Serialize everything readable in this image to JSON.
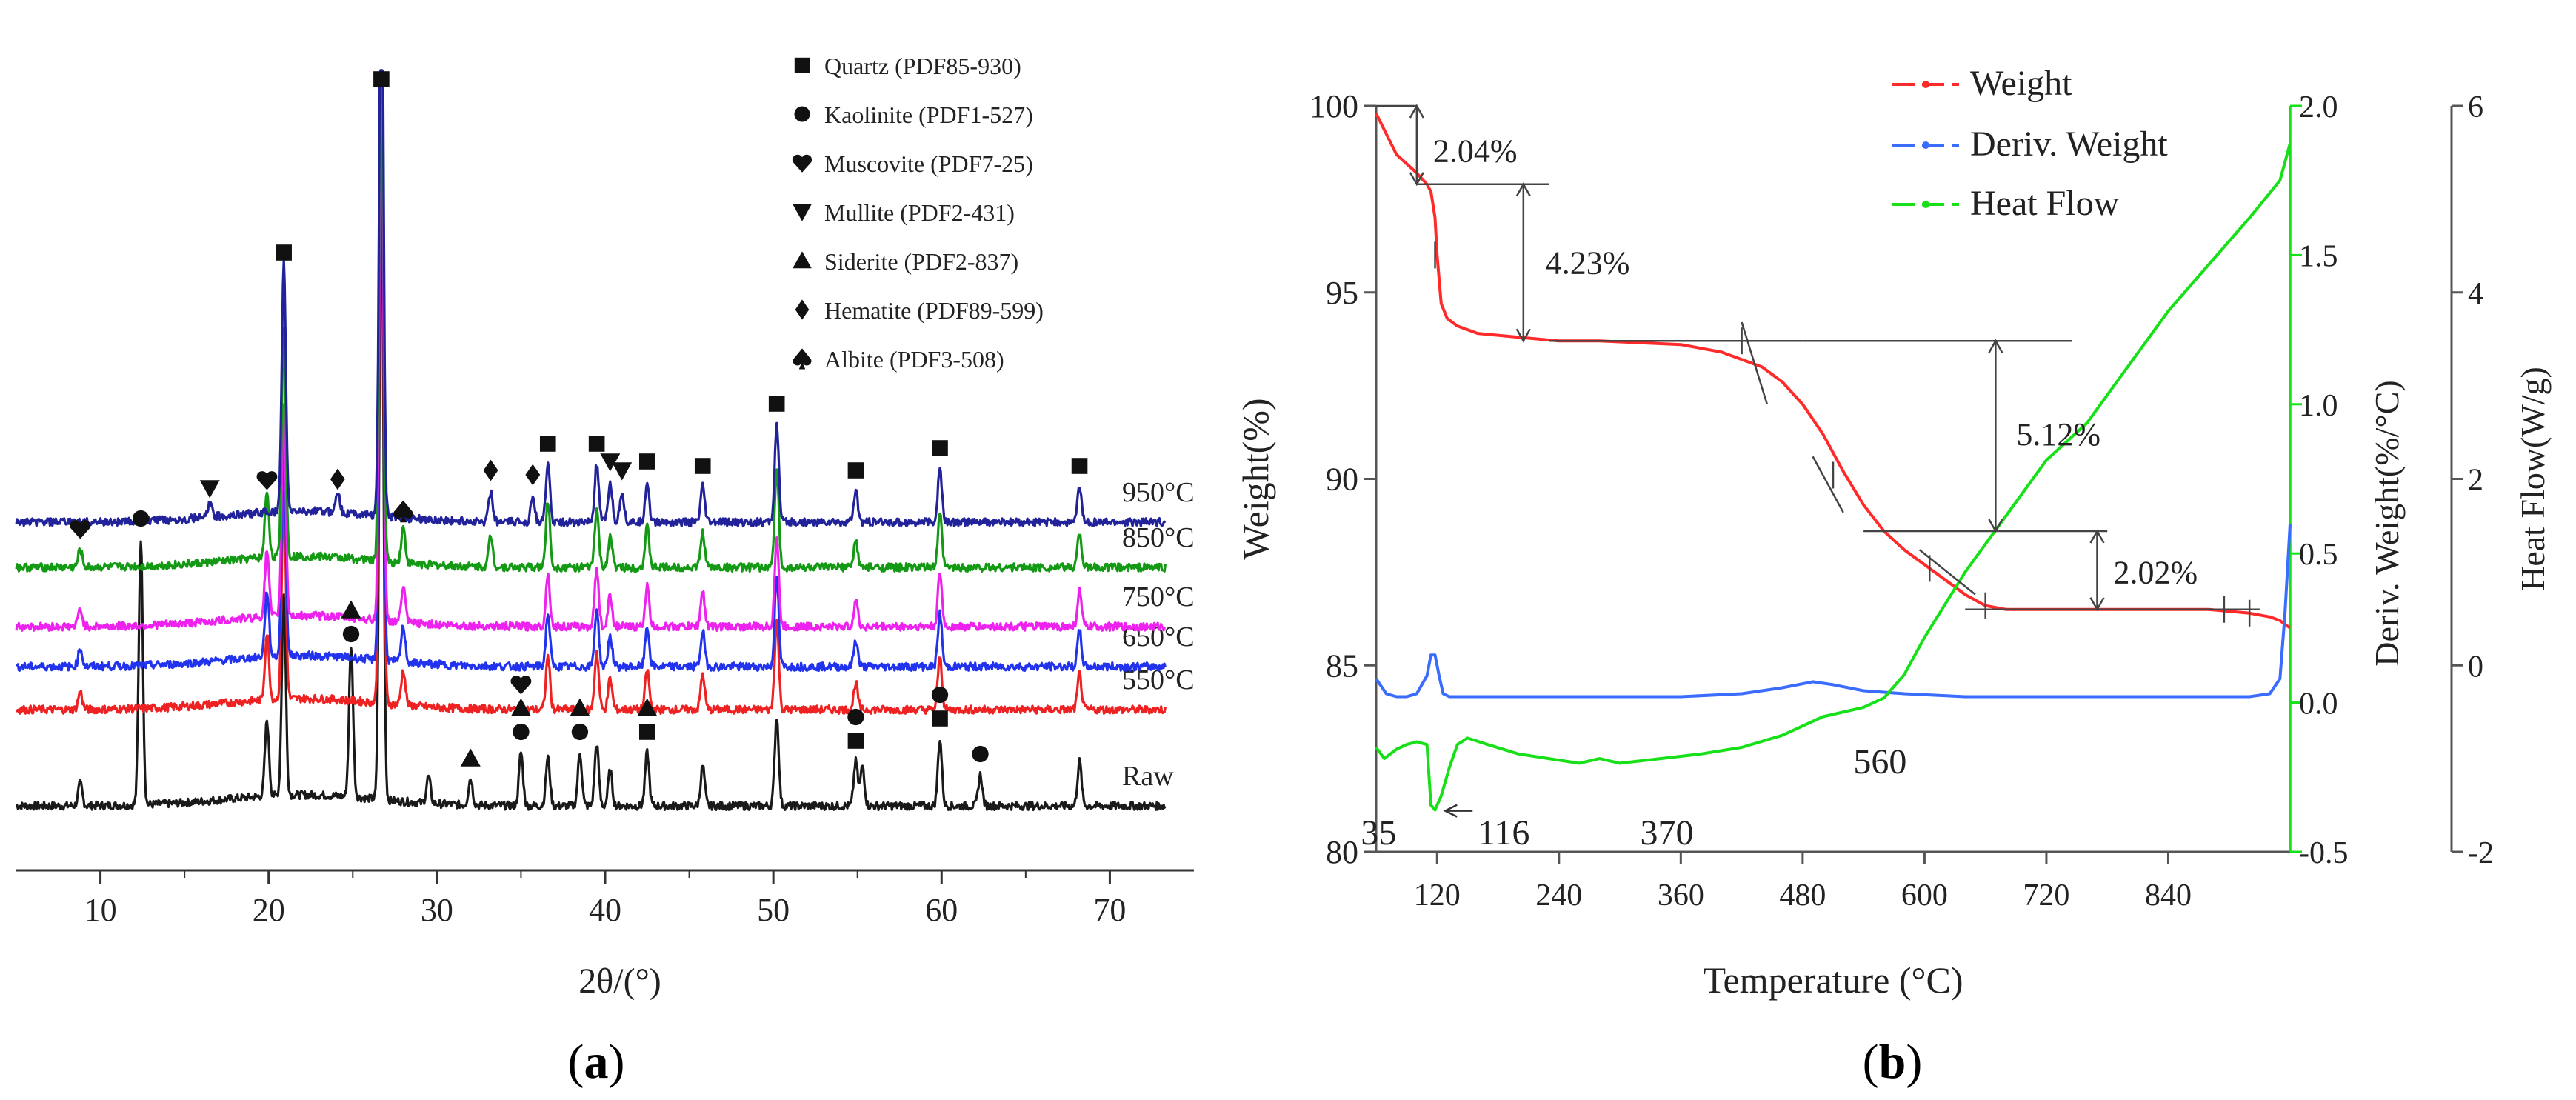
{
  "panel_a_label": "a",
  "panel_b_label": "b",
  "chart_data": [
    {
      "type": "line",
      "panel": "a",
      "xlabel": "2θ/(°)",
      "ylabel": "",
      "xlim": [
        5,
        75
      ],
      "xticks": [
        10,
        20,
        30,
        40,
        50,
        60,
        70
      ],
      "y_axis_visible": false,
      "grid": false,
      "legend_position": "top-right",
      "legend": [
        {
          "marker": "square",
          "label": "Quartz (PDF85-930)"
        },
        {
          "marker": "circle",
          "label": "Kaolinite (PDF1-527)"
        },
        {
          "marker": "heart",
          "label": "Muscovite (PDF7-25)"
        },
        {
          "marker": "triangle-down",
          "label": "Mullite (PDF2-431)"
        },
        {
          "marker": "triangle-up",
          "label": "Siderite (PDF2-837)"
        },
        {
          "marker": "diamond",
          "label": "Hematite (PDF89-599)"
        },
        {
          "marker": "spade",
          "label": "Albite (PDF3-508)"
        }
      ],
      "series": [
        {
          "name": "Raw",
          "color": "#1a1a1a",
          "peaks": [
            [
              8.8,
              0.5
            ],
            [
              12.4,
              6.0
            ],
            [
              19.9,
              1.7
            ],
            [
              20.9,
              4.5
            ],
            [
              24.9,
              3.4
            ],
            [
              26.7,
              14.0
            ],
            [
              29.5,
              0.6
            ],
            [
              32.0,
              0.6
            ],
            [
              35.0,
              1.2
            ],
            [
              36.6,
              1.1
            ],
            [
              38.5,
              1.2
            ],
            [
              39.5,
              1.4
            ],
            [
              40.3,
              0.8
            ],
            [
              42.5,
              1.2
            ],
            [
              45.8,
              0.9
            ],
            [
              50.2,
              2.0
            ],
            [
              54.9,
              1.0
            ],
            [
              55.3,
              0.9
            ],
            [
              59.9,
              1.5
            ],
            [
              62.3,
              0.7
            ],
            [
              68.2,
              1.0
            ]
          ]
        },
        {
          "name": "550°C",
          "color": "#ee2222",
          "peaks": [
            [
              8.8,
              0.4
            ],
            [
              19.9,
              1.5
            ],
            [
              20.9,
              4.6
            ],
            [
              26.7,
              14.0
            ],
            [
              28.0,
              0.8
            ],
            [
              36.6,
              1.2
            ],
            [
              39.5,
              1.3
            ],
            [
              40.3,
              0.7
            ],
            [
              42.5,
              0.9
            ],
            [
              45.8,
              0.8
            ],
            [
              50.2,
              2.0
            ],
            [
              54.9,
              0.6
            ],
            [
              59.9,
              1.2
            ],
            [
              68.2,
              0.8
            ]
          ]
        },
        {
          "name": "650°C",
          "color": "#2233ee",
          "peaks": [
            [
              8.8,
              0.4
            ],
            [
              19.9,
              1.5
            ],
            [
              20.9,
              4.8
            ],
            [
              26.7,
              14.0
            ],
            [
              28.0,
              0.8
            ],
            [
              36.6,
              1.2
            ],
            [
              39.5,
              1.3
            ],
            [
              40.3,
              0.7
            ],
            [
              42.5,
              0.9
            ],
            [
              45.8,
              0.8
            ],
            [
              50.2,
              2.0
            ],
            [
              54.9,
              0.6
            ],
            [
              59.9,
              1.2
            ],
            [
              68.2,
              0.8
            ]
          ]
        },
        {
          "name": "750°C",
          "color": "#ee22ee",
          "peaks": [
            [
              8.8,
              0.4
            ],
            [
              19.9,
              1.5
            ],
            [
              20.9,
              4.8
            ],
            [
              26.7,
              14.0
            ],
            [
              28.0,
              0.8
            ],
            [
              36.6,
              1.2
            ],
            [
              39.5,
              1.3
            ],
            [
              40.3,
              0.7
            ],
            [
              42.5,
              0.9
            ],
            [
              45.8,
              0.8
            ],
            [
              50.2,
              2.0
            ],
            [
              54.9,
              0.6
            ],
            [
              59.9,
              1.2
            ],
            [
              68.2,
              0.8
            ]
          ]
        },
        {
          "name": "850°C",
          "color": "#149914",
          "peaks": [
            [
              8.8,
              0.4
            ],
            [
              19.9,
              1.5
            ],
            [
              20.9,
              5.2
            ],
            [
              26.7,
              14.0
            ],
            [
              28.0,
              0.8
            ],
            [
              33.2,
              0.7
            ],
            [
              36.6,
              1.5
            ],
            [
              39.5,
              1.3
            ],
            [
              40.3,
              0.7
            ],
            [
              42.5,
              0.9
            ],
            [
              45.8,
              0.8
            ],
            [
              50.2,
              2.2
            ],
            [
              54.9,
              0.6
            ],
            [
              59.9,
              1.2
            ],
            [
              68.2,
              0.8
            ]
          ]
        },
        {
          "name": "950°C",
          "color": "#22229a",
          "peaks": [
            [
              16.5,
              0.3
            ],
            [
              20.9,
              5.6
            ],
            [
              24.1,
              0.5
            ],
            [
              26.7,
              14.0
            ],
            [
              33.2,
              0.7
            ],
            [
              35.7,
              0.6
            ],
            [
              36.6,
              1.3
            ],
            [
              39.5,
              1.3
            ],
            [
              40.3,
              0.9
            ],
            [
              41.0,
              0.7
            ],
            [
              42.5,
              0.9
            ],
            [
              45.8,
              0.8
            ],
            [
              50.2,
              2.2
            ],
            [
              54.9,
              0.7
            ],
            [
              59.9,
              1.2
            ],
            [
              68.2,
              0.8
            ]
          ]
        }
      ],
      "markers": [
        {
          "x": 26.7,
          "series": "950°C",
          "symbols": [
            "square"
          ]
        },
        {
          "x": 20.9,
          "series": "950°C",
          "symbols": [
            "square"
          ]
        },
        {
          "x": 16.5,
          "series": "950°C",
          "symbols": [
            "triangle-down"
          ]
        },
        {
          "x": 24.1,
          "series": "950°C",
          "symbols": [
            "diamond"
          ]
        },
        {
          "x": 33.2,
          "series": "950°C",
          "symbols": [
            "diamond"
          ]
        },
        {
          "x": 35.7,
          "series": "950°C",
          "symbols": [
            "diamond"
          ]
        },
        {
          "x": 36.6,
          "series": "950°C",
          "symbols": [
            "square"
          ]
        },
        {
          "x": 39.5,
          "series": "950°C",
          "symbols": [
            "square"
          ]
        },
        {
          "x": 40.3,
          "series": "950°C",
          "symbols": [
            "triangle-down"
          ]
        },
        {
          "x": 41.0,
          "series": "950°C",
          "symbols": [
            "triangle-down"
          ]
        },
        {
          "x": 42.5,
          "series": "950°C",
          "symbols": [
            "square"
          ]
        },
        {
          "x": 45.8,
          "series": "950°C",
          "symbols": [
            "square"
          ]
        },
        {
          "x": 50.2,
          "series": "950°C",
          "symbols": [
            "square"
          ]
        },
        {
          "x": 54.9,
          "series": "950°C",
          "symbols": [
            "square"
          ]
        },
        {
          "x": 59.9,
          "series": "950°C",
          "symbols": [
            "square"
          ]
        },
        {
          "x": 68.2,
          "series": "950°C",
          "symbols": [
            "square"
          ]
        },
        {
          "x": 8.8,
          "series": "850°C",
          "symbols": [
            "heart"
          ]
        },
        {
          "x": 19.9,
          "series": "850°C",
          "symbols": [
            "heart"
          ]
        },
        {
          "x": 28.0,
          "series": "850°C",
          "symbols": [
            "spade"
          ]
        },
        {
          "x": 12.4,
          "series": "Raw",
          "symbols": [
            "circle"
          ]
        },
        {
          "x": 24.9,
          "series": "Raw",
          "symbols": [
            "circle",
            "triangle-up"
          ]
        },
        {
          "x": 32.0,
          "series": "Raw",
          "symbols": [
            "triangle-up"
          ]
        },
        {
          "x": 35.0,
          "series": "Raw",
          "symbols": [
            "circle",
            "triangle-up",
            "heart"
          ]
        },
        {
          "x": 38.5,
          "series": "Raw",
          "symbols": [
            "circle",
            "triangle-up"
          ]
        },
        {
          "x": 42.5,
          "series": "Raw",
          "symbols": [
            "square",
            "triangle-up"
          ]
        },
        {
          "x": 54.9,
          "series": "Raw",
          "symbols": [
            "square",
            "circle"
          ]
        },
        {
          "x": 59.9,
          "series": "Raw",
          "symbols": [
            "square",
            "circle"
          ]
        },
        {
          "x": 62.3,
          "series": "Raw",
          "symbols": [
            "circle"
          ]
        }
      ]
    },
    {
      "type": "line",
      "panel": "b",
      "xlabel": "Temperature (°C)",
      "ylabel": "Weight(%)",
      "y2label": "Deriv. Weight(%/°C)",
      "y3label": "Heat Flow(W/g)",
      "xlim": [
        60,
        960
      ],
      "xticks": [
        120,
        240,
        360,
        480,
        600,
        720,
        840
      ],
      "ylim": [
        80,
        100
      ],
      "yticks": [
        80,
        85,
        90,
        95,
        100
      ],
      "y2lim": [
        -0.5,
        2.0
      ],
      "y2ticks": [
        -0.5,
        0.0,
        0.5,
        1.0,
        1.5,
        2.0
      ],
      "y3lim": [
        -2,
        6
      ],
      "y3ticks": [
        -2,
        0,
        2,
        4,
        6
      ],
      "grid": false,
      "legend_position": "top-right",
      "series": [
        {
          "name": "Weight",
          "axis": "left",
          "color": "#ff2a2a",
          "x": [
            60,
            80,
            100,
            110,
            114,
            118,
            120,
            124,
            130,
            140,
            160,
            200,
            240,
            280,
            320,
            360,
            400,
            440,
            460,
            480,
            500,
            520,
            540,
            560,
            580,
            600,
            620,
            640,
            660,
            680,
            700,
            760,
            820,
            880,
            900,
            920,
            940,
            950,
            960
          ],
          "y": [
            99.8,
            98.7,
            98.2,
            97.9,
            97.7,
            97.0,
            96.0,
            94.7,
            94.3,
            94.1,
            93.9,
            93.8,
            93.7,
            93.7,
            93.65,
            93.6,
            93.4,
            93.0,
            92.6,
            92.0,
            91.2,
            90.2,
            89.3,
            88.6,
            88.1,
            87.7,
            87.3,
            86.9,
            86.6,
            86.5,
            86.5,
            86.5,
            86.5,
            86.5,
            86.45,
            86.4,
            86.3,
            86.2,
            86.0
          ]
        },
        {
          "name": "Deriv. Weight",
          "axis": "right1",
          "color": "#3a6cff",
          "x": [
            60,
            70,
            80,
            90,
            100,
            110,
            114,
            118,
            122,
            126,
            132,
            140,
            160,
            200,
            280,
            360,
            420,
            460,
            490,
            510,
            540,
            580,
            640,
            720,
            800,
            880,
            920,
            940,
            950,
            955,
            960
          ],
          "y": [
            0.08,
            0.03,
            0.02,
            0.02,
            0.03,
            0.09,
            0.16,
            0.16,
            0.09,
            0.03,
            0.02,
            0.02,
            0.02,
            0.02,
            0.02,
            0.02,
            0.03,
            0.05,
            0.07,
            0.06,
            0.04,
            0.03,
            0.02,
            0.02,
            0.02,
            0.02,
            0.02,
            0.03,
            0.08,
            0.3,
            0.6
          ]
        },
        {
          "name": "Heat Flow",
          "axis": "right2",
          "color": "#18e018",
          "x": [
            60,
            68,
            80,
            90,
            100,
            110,
            114,
            118,
            124,
            132,
            140,
            150,
            170,
            200,
            230,
            260,
            280,
            300,
            340,
            380,
            420,
            460,
            500,
            540,
            560,
            580,
            600,
            640,
            680,
            720,
            760,
            800,
            840,
            880,
            920,
            950,
            960
          ],
          "y": [
            -0.88,
            -1.0,
            -0.9,
            -0.85,
            -0.82,
            -0.85,
            -1.5,
            -1.55,
            -1.4,
            -1.1,
            -0.85,
            -0.78,
            -0.85,
            -0.95,
            -1.0,
            -1.05,
            -1.0,
            -1.05,
            -1.0,
            -0.95,
            -0.88,
            -0.75,
            -0.55,
            -0.45,
            -0.35,
            -0.1,
            0.3,
            1.0,
            1.6,
            2.2,
            2.6,
            3.2,
            3.8,
            4.3,
            4.8,
            5.2,
            5.6
          ]
        }
      ],
      "annotations": [
        {
          "text": "2.04%"
        },
        {
          "text": "4.23%"
        },
        {
          "text": "5.12%"
        },
        {
          "text": "2.02%"
        },
        {
          "text": "35"
        },
        {
          "text": "116"
        },
        {
          "text": "370"
        },
        {
          "text": "560"
        }
      ]
    }
  ]
}
